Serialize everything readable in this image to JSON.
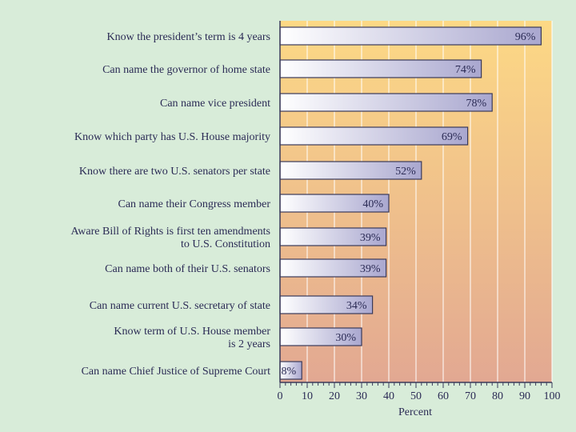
{
  "chart_data": {
    "type": "bar",
    "orientation": "horizontal",
    "title": "",
    "xlabel": "Percent",
    "ylabel": "",
    "xlim": [
      0,
      100
    ],
    "x_ticks": [
      "0",
      "10",
      "20",
      "30",
      "40",
      "50",
      "60",
      "70",
      "80",
      "90",
      "100"
    ],
    "grid": true,
    "categories": [
      [
        "Know the president’s term is 4 years"
      ],
      [
        "Can name the governor of home state"
      ],
      [
        "Can name vice president"
      ],
      [
        "Know which party has U.S. House majority"
      ],
      [
        "Know there are two U.S. senators per state"
      ],
      [
        "Can name their Congress member"
      ],
      [
        "Aware Bill of Rights is first ten amendments",
        "to U.S. Constitution"
      ],
      [
        "Can name both of their U.S. senators"
      ],
      [
        "Can name current U.S. secretary of state"
      ],
      [
        "Know term of U.S. House member",
        "is 2 years"
      ],
      [
        "Can name Chief Justice of Supreme Court"
      ]
    ],
    "values": [
      96,
      74,
      78,
      69,
      52,
      40,
      39,
      39,
      34,
      30,
      8
    ],
    "value_labels": [
      "96%",
      "74%",
      "78%",
      "69%",
      "52%",
      "40%",
      "39%",
      "39%",
      "34%",
      "30%",
      "8%"
    ]
  },
  "colors": {
    "page_background": "#d8ecd9",
    "plot_gradient_top": "#fdd985",
    "plot_gradient_bottom": "#e2a892",
    "bar_light": "#ffffff",
    "bar_dark": "#a9a7cf",
    "bar_stroke": "#3a3a5a",
    "text": "#2b2b55",
    "grid": "#ffffff"
  }
}
